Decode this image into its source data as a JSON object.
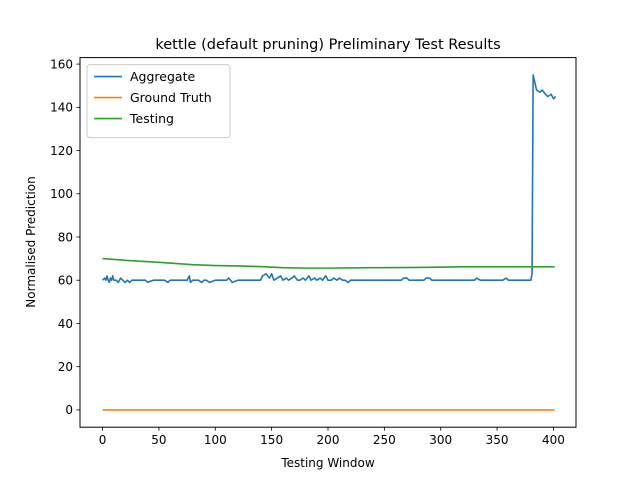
{
  "chart_data": {
    "type": "line",
    "title": "kettle (default pruning) Preliminary Test Results",
    "xlabel": "Testing Window",
    "ylabel": "Normalised Prediction",
    "xlim": [
      -20,
      420
    ],
    "ylim": [
      -8,
      163
    ],
    "xticks": [
      0,
      50,
      100,
      150,
      200,
      250,
      300,
      350,
      400
    ],
    "yticks": [
      0,
      20,
      40,
      60,
      80,
      100,
      120,
      140,
      160
    ],
    "legend_position": "top-left",
    "grid": false,
    "series": [
      {
        "name": "Aggregate",
        "color": "#1f77b4",
        "x": [
          0,
          2,
          3,
          4,
          5,
          6,
          7,
          8,
          9,
          10,
          12,
          14,
          15,
          16,
          18,
          20,
          22,
          24,
          26,
          28,
          30,
          35,
          38,
          40,
          45,
          50,
          55,
          58,
          60,
          65,
          70,
          75,
          77,
          78,
          80,
          85,
          88,
          90,
          92,
          95,
          100,
          105,
          110,
          112,
          115,
          120,
          125,
          130,
          135,
          140,
          142,
          145,
          148,
          150,
          152,
          155,
          158,
          160,
          163,
          165,
          168,
          170,
          173,
          175,
          178,
          180,
          183,
          185,
          188,
          190,
          193,
          195,
          198,
          200,
          203,
          205,
          208,
          210,
          213,
          215,
          218,
          220,
          225,
          230,
          235,
          240,
          245,
          250,
          255,
          260,
          265,
          267,
          270,
          272,
          275,
          280,
          285,
          287,
          290,
          292,
          295,
          300,
          305,
          310,
          315,
          320,
          325,
          330,
          332,
          335,
          340,
          345,
          350,
          355,
          358,
          360,
          365,
          370,
          375,
          378,
          380,
          381,
          382,
          385,
          388,
          390,
          393,
          395,
          398,
          400,
          402
        ],
        "y": [
          60,
          61,
          60,
          62,
          60,
          59,
          61,
          60,
          62,
          60,
          60,
          59,
          60,
          61,
          60,
          59,
          60,
          59,
          60,
          60,
          60,
          60,
          60,
          59,
          60,
          60,
          60,
          59,
          60,
          60,
          60,
          60,
          62,
          59,
          60,
          60,
          59,
          60,
          60,
          59,
          60,
          60,
          60,
          61,
          59,
          60,
          60,
          60,
          60,
          60,
          62,
          63,
          61,
          63,
          60,
          61,
          62,
          60,
          61,
          60,
          61,
          62,
          60,
          60,
          61,
          60,
          62,
          60,
          61,
          60,
          61,
          60,
          62,
          60,
          60,
          61,
          60,
          61,
          60,
          60,
          59,
          60,
          60,
          60,
          60,
          60,
          60,
          60,
          60,
          60,
          60,
          61,
          61,
          60,
          60,
          60,
          60,
          61,
          61,
          60,
          60,
          60,
          60,
          60,
          60,
          60,
          60,
          60,
          61,
          60,
          60,
          60,
          60,
          60,
          61,
          60,
          60,
          60,
          60,
          60,
          60,
          63,
          155,
          148,
          147,
          148,
          146,
          145,
          146,
          144,
          145
        ]
      },
      {
        "name": "Ground Truth",
        "color": "#ff7f0e",
        "x": [
          0,
          401
        ],
        "y": [
          0,
          0
        ]
      },
      {
        "name": "Testing",
        "color": "#2ca02c",
        "x": [
          0,
          20,
          50,
          80,
          100,
          120,
          140,
          160,
          180,
          200,
          240,
          280,
          320,
          360,
          380,
          401
        ],
        "y": [
          70,
          69.2,
          68.3,
          67.2,
          66.8,
          66.6,
          66.3,
          65.8,
          65.6,
          65.6,
          65.8,
          65.9,
          66.2,
          66.2,
          66.2,
          66.2
        ]
      }
    ]
  }
}
